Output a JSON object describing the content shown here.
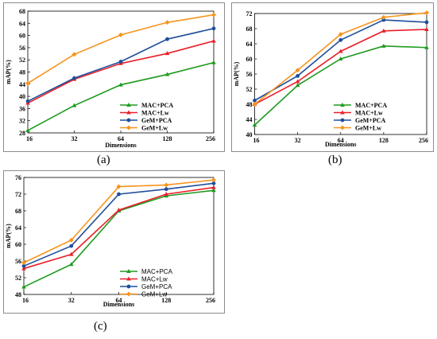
{
  "captions": [
    "(a)",
    "(b)",
    "(c)"
  ],
  "chart_data": [
    {
      "type": "line",
      "panel": "a",
      "x": [
        16,
        32,
        64,
        128,
        256
      ],
      "xlabel": "Dimensions",
      "ylabel": "mAP(%)",
      "ylim": [
        28,
        68
      ],
      "yticks": [
        28,
        32,
        36,
        40,
        44,
        48,
        52,
        56,
        60,
        64,
        68
      ],
      "legend_position": "bottom-right",
      "legend_style": "serif-bold",
      "series": [
        {
          "name": "MAC+PCA",
          "color": "#1e9a1e",
          "marker": "triangle",
          "values": [
            28.8,
            37.0,
            43.8,
            47.2,
            51.1
          ]
        },
        {
          "name": "MAC+Lw",
          "color": "#e8202a",
          "marker": "triangle",
          "values": [
            37.8,
            45.6,
            50.8,
            54.1,
            58.2
          ]
        },
        {
          "name": "GeM+PCA",
          "color": "#1f4e9c",
          "marker": "circle",
          "values": [
            38.4,
            46.0,
            51.4,
            58.8,
            62.3
          ]
        },
        {
          "name": "GeM+Lw",
          "color": "#f7941d",
          "marker": "diamond",
          "values": [
            44.3,
            53.8,
            60.2,
            64.3,
            66.8
          ]
        }
      ]
    },
    {
      "type": "line",
      "panel": "b",
      "x": [
        16,
        32,
        64,
        128,
        256
      ],
      "xlabel": "Dimensions",
      "ylabel": "mAP(%)",
      "ylim": [
        40,
        72
      ],
      "yticks": [
        40,
        44,
        48,
        52,
        56,
        60,
        64,
        68,
        72
      ],
      "legend_position": "bottom-right",
      "legend_style": "serif-bold",
      "series": [
        {
          "name": "MAC+PCA",
          "color": "#1e9a1e",
          "marker": "triangle",
          "values": [
            42.5,
            53.0,
            60.0,
            63.4,
            63.0
          ]
        },
        {
          "name": "MAC+Lw",
          "color": "#e8202a",
          "marker": "triangle",
          "values": [
            48.0,
            54.0,
            62.0,
            67.4,
            67.8
          ]
        },
        {
          "name": "GeM+PCA",
          "color": "#1f4e9c",
          "marker": "circle",
          "values": [
            49.0,
            55.5,
            65.0,
            70.3,
            69.7
          ]
        },
        {
          "name": "GeM+Lw",
          "color": "#f7941d",
          "marker": "diamond",
          "values": [
            48.0,
            57.0,
            66.5,
            71.0,
            72.2
          ]
        }
      ]
    },
    {
      "type": "line",
      "panel": "c",
      "x": [
        16,
        32,
        64,
        128,
        256
      ],
      "xlabel": "Dimensions",
      "ylabel": "mAP(%)",
      "ylim": [
        48,
        76
      ],
      "yticks": [
        48,
        52,
        56,
        60,
        64,
        68,
        72,
        76
      ],
      "legend_position": "bottom-right",
      "legend_style": "sans",
      "series": [
        {
          "name": "MAC+PCA",
          "color": "#1e9a1e",
          "marker": "triangle",
          "values": [
            49.8,
            55.2,
            68.0,
            71.6,
            72.9
          ]
        },
        {
          "name": "MAC+Lw",
          "color": "#e8202a",
          "marker": "triangle",
          "values": [
            54.2,
            57.6,
            68.2,
            72.0,
            73.6
          ]
        },
        {
          "name": "GeM+PCA",
          "color": "#1f4e9c",
          "marker": "circle",
          "values": [
            54.8,
            59.6,
            72.0,
            73.2,
            74.6
          ]
        },
        {
          "name": "GeM+Lw",
          "color": "#f7941d",
          "marker": "diamond",
          "values": [
            55.6,
            61.0,
            73.8,
            74.2,
            75.4
          ]
        }
      ]
    }
  ]
}
